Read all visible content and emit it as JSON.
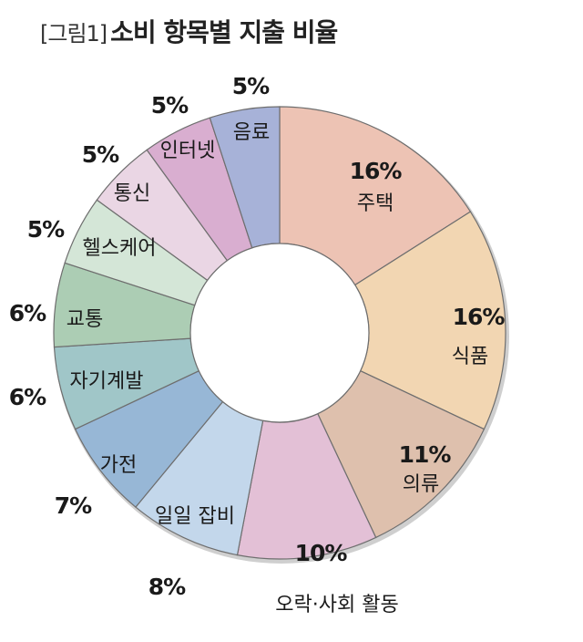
{
  "title_prefix": "[그림1]",
  "title": "소비 항목별 지출 비율",
  "chart_data": {
    "type": "pie",
    "donut": true,
    "unit": "%",
    "slices": [
      {
        "label": "주택",
        "value": 16,
        "display": "16%",
        "color": "#EDC3B4"
      },
      {
        "label": "식품",
        "value": 16,
        "display": "16%",
        "color": "#F2D6B2"
      },
      {
        "label": "의류",
        "value": 11,
        "display": "11%",
        "color": "#DEC0AD"
      },
      {
        "label": "오락·사회 활동",
        "value": 10,
        "display": "10%",
        "color": "#E3C0D6"
      },
      {
        "label": "일일 잡비",
        "value": 8,
        "display": "8%",
        "color": "#C3D7EB"
      },
      {
        "label": "가전",
        "value": 7,
        "display": "7%",
        "color": "#97B7D6"
      },
      {
        "label": "자기계발",
        "value": 6,
        "display": "6%",
        "color": "#A0C6C8"
      },
      {
        "label": "교통",
        "value": 6,
        "display": "6%",
        "color": "#ACCDB4"
      },
      {
        "label": "헬스케어",
        "value": 5,
        "display": "5%",
        "color": "#D4E6D7"
      },
      {
        "label": "통신",
        "value": 5,
        "display": "5%",
        "color": "#EAD6E4"
      },
      {
        "label": "인터넷",
        "value": 5,
        "display": "5%",
        "color": "#D9AED0"
      },
      {
        "label": "음료",
        "value": 5,
        "display": "5%",
        "color": "#A7B2D8"
      }
    ]
  }
}
